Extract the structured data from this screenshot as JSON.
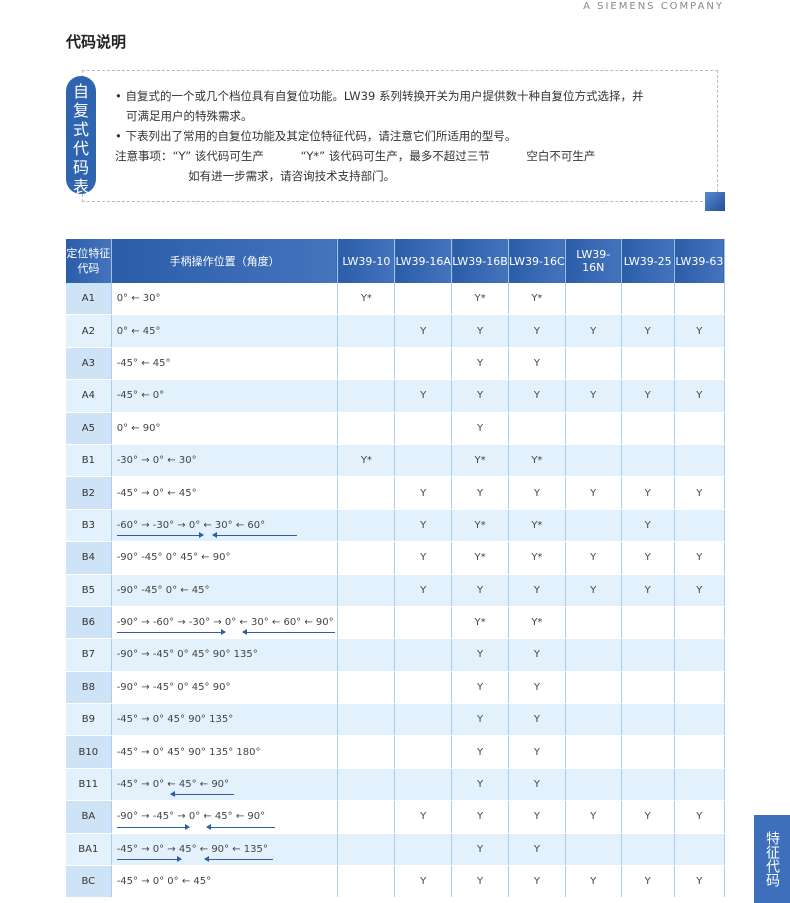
{
  "brand": "A SIEMENS COMPANY",
  "title": "代码说明",
  "box": {
    "label": [
      "自",
      "复",
      "式",
      "代",
      "码",
      "表"
    ],
    "lines": [
      "• 自复式的一个或几个档位具有自复位功能。LW39 系列转换开关为用户提供数十种自复位方式选择，并",
      "   可满足用户的特殊需求。",
      "• 下表列出了常用的自复位功能及其定位特征代码，请注意它们所适用的型号。",
      "注意事项：“Y” 该代码可生产          “Y*” 该代码可生产，最多不超过三节          空白不可生产",
      "                    如有进一步需求，请咨询技术支持部门。"
    ]
  },
  "table": {
    "headers": [
      "定位特征代码",
      "手柄操作位置（角度）",
      "LW39-10",
      "LW39-16A",
      "LW39-16B",
      "LW39-16C",
      "LW39-16N",
      "LW39-25",
      "LW39-63"
    ],
    "rows": [
      {
        "code": "A1",
        "pos": "0° ← 30°",
        "v": [
          "Y*",
          "",
          "Y*",
          "Y*",
          "",
          "",
          ""
        ]
      },
      {
        "code": "A2",
        "pos": "0° ← 45°",
        "v": [
          "",
          "Y",
          "Y",
          "Y",
          "Y",
          "Y",
          "Y"
        ]
      },
      {
        "code": "A3",
        "pos": "-45° ← 45°",
        "v": [
          "",
          "",
          "Y",
          "Y",
          "",
          "",
          ""
        ]
      },
      {
        "code": "A4",
        "pos": "-45° ← 0°",
        "v": [
          "",
          "Y",
          "Y",
          "Y",
          "Y",
          "Y",
          "Y"
        ]
      },
      {
        "code": "A5",
        "pos": "0° ← 90°",
        "v": [
          "",
          "",
          "Y",
          "",
          "",
          "",
          ""
        ]
      },
      {
        "code": "B1",
        "pos": "-30° → 0° ← 30°",
        "v": [
          "Y*",
          "",
          "Y*",
          "Y*",
          "",
          "",
          ""
        ]
      },
      {
        "code": "B2",
        "pos": "-45° → 0° ← 45°",
        "v": [
          "",
          "Y",
          "Y",
          "Y",
          "Y",
          "Y",
          "Y"
        ]
      },
      {
        "code": "B3",
        "pos": "-60° → -30° → 0° ← 30° ← 60°",
        "v": [
          "",
          "Y",
          "Y*",
          "Y*",
          "",
          "Y",
          ""
        ],
        "underline": "both"
      },
      {
        "code": "B4",
        "pos": "-90° -45° 0° 45° ← 90°",
        "v": [
          "",
          "Y",
          "Y*",
          "Y*",
          "Y",
          "Y",
          "Y"
        ]
      },
      {
        "code": "B5",
        "pos": "-90° -45° 0° ← 45°",
        "v": [
          "",
          "Y",
          "Y",
          "Y",
          "Y",
          "Y",
          "Y"
        ]
      },
      {
        "code": "B6",
        "pos": "-90° → -60° → -30° → 0° ← 30° ← 60° ← 90°",
        "v": [
          "",
          "",
          "Y*",
          "Y*",
          "",
          "",
          ""
        ],
        "underline": "both"
      },
      {
        "code": "B7",
        "pos": "-90° → -45° 0° 45° 90° 135°",
        "v": [
          "",
          "",
          "Y",
          "Y",
          "",
          "",
          ""
        ]
      },
      {
        "code": "B8",
        "pos": "-90° → -45° 0° 45° 90°",
        "v": [
          "",
          "",
          "Y",
          "Y",
          "",
          "",
          ""
        ]
      },
      {
        "code": "B9",
        "pos": "-45° → 0° 45° 90° 135°",
        "v": [
          "",
          "",
          "Y",
          "Y",
          "",
          "",
          ""
        ]
      },
      {
        "code": "B10",
        "pos": "-45° → 0° 45° 90° 135° 180°",
        "v": [
          "",
          "",
          "Y",
          "Y",
          "",
          "",
          ""
        ]
      },
      {
        "code": "B11",
        "pos": "-45° → 0° ← 45° ← 90°",
        "v": [
          "",
          "",
          "Y",
          "Y",
          "",
          "",
          ""
        ],
        "underline": "left"
      },
      {
        "code": "BA",
        "pos": "-90° → -45° → 0° ← 45° ← 90°",
        "v": [
          "",
          "Y",
          "Y",
          "Y",
          "Y",
          "Y",
          "Y"
        ],
        "underline": "both"
      },
      {
        "code": "BA1",
        "pos": "-45° → 0° → 45° ← 90° ← 135°",
        "v": [
          "",
          "",
          "Y",
          "Y",
          "",
          "",
          ""
        ],
        "underline": "both"
      },
      {
        "code": "BC",
        "pos": "-45° → 0° 0° ← 45°",
        "v": [
          "",
          "Y",
          "Y",
          "Y",
          "Y",
          "Y",
          "Y"
        ]
      }
    ]
  },
  "side_tab": "特征代码",
  "colors": {
    "header": "#2b5da8",
    "alt_row": "#e2f1fc",
    "code_col": "#cfe3f6"
  }
}
